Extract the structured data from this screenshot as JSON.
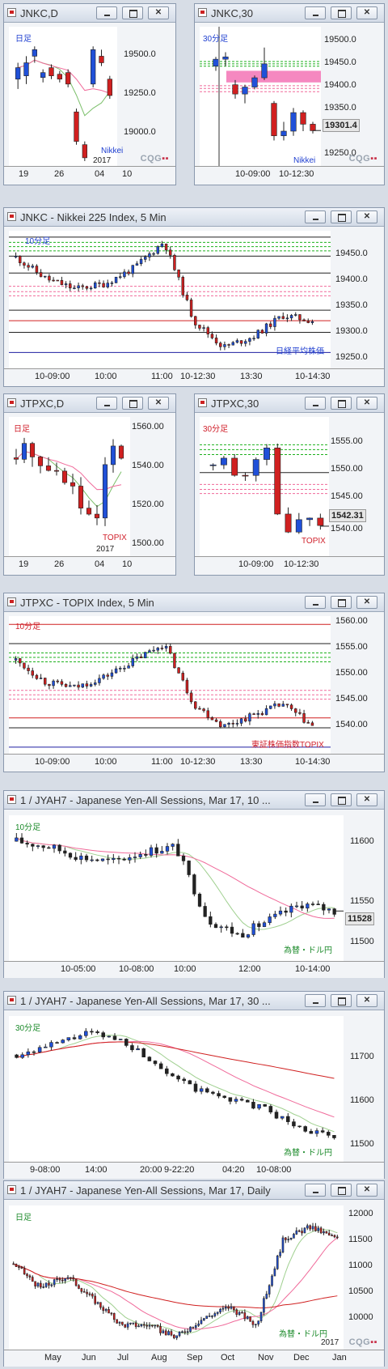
{
  "windows": [
    {
      "id": "w1",
      "title": "JNKC,D",
      "period": "日足",
      "name": "Nikkei",
      "year": "2017",
      "yticks": [
        "19500.0",
        "19250.0",
        "19000.0"
      ],
      "xticks": [
        "19",
        "26",
        "04",
        "10"
      ],
      "colors": {
        "period": "#1f3fd0",
        "name": "#1f3fd0"
      }
    },
    {
      "id": "w2",
      "title": "JNKC,30",
      "period": "30分足",
      "name": "Nikkei",
      "price": "19301.4",
      "yticks": [
        "19500.0",
        "19450.0",
        "19400.0",
        "19350.0",
        "19300.0",
        "19250.0"
      ],
      "xticks": [
        "10-09:00",
        "10-12:30"
      ],
      "colors": {
        "period": "#1f3fd0",
        "name": "#1f3fd0"
      }
    },
    {
      "id": "w3",
      "title": "JNKC - Nikkei 225 Index, 5 Min",
      "period": "10分足",
      "name": "日経平均株価",
      "yticks": [
        "19450.0",
        "19400.0",
        "19350.0",
        "19300.0",
        "19250.0"
      ],
      "xticks": [
        "10-09:00",
        "10:00",
        "11:00",
        "10-12:30",
        "13:30",
        "10-14:30"
      ],
      "colors": {
        "period": "#1f3fd0",
        "name": "#1f3fd0"
      }
    },
    {
      "id": "w4",
      "title": "JTPXC,D",
      "period": "日足",
      "name": "TOPIX",
      "year": "2017",
      "yticks": [
        "1560.00",
        "1540.00",
        "1520.00",
        "1500.00"
      ],
      "xticks": [
        "19",
        "26",
        "04",
        "10"
      ],
      "colors": {
        "period": "#d01f2a",
        "name": "#d01f2a"
      }
    },
    {
      "id": "w5",
      "title": "JTPXC,30",
      "period": "30分足",
      "name": "TOPIX",
      "price": "1542.31",
      "yticks": [
        "1555.00",
        "1550.00",
        "1545.00",
        "1540.00"
      ],
      "xticks": [
        "10-09:00",
        "10-12:30"
      ],
      "colors": {
        "period": "#d01f2a",
        "name": "#d01f2a"
      }
    },
    {
      "id": "w6",
      "title": "JTPXC - TOPIX Index, 5 Min",
      "period": "10分足",
      "name": "東証株価指数TOPIX",
      "yticks": [
        "1560.00",
        "1555.00",
        "1550.00",
        "1545.00",
        "1540.00"
      ],
      "xticks": [
        "10-09:00",
        "10:00",
        "11:00",
        "10-12:30",
        "13:30",
        "10-14:30"
      ],
      "colors": {
        "period": "#d01f2a",
        "name": "#d01f2a"
      }
    },
    {
      "id": "w7",
      "title": "1 / JYAH7 - Japanese Yen-All Sessions, Mar 17, 10 ...",
      "period": "10分足",
      "name": "為替・ドル円",
      "price": "11528",
      "yticks": [
        "11600",
        "11550",
        "11500"
      ],
      "xticks": [
        "10-05:00",
        "10-08:00",
        "10:00",
        "12:00",
        "10-14:00"
      ],
      "colors": {
        "period": "#1b8a2a",
        "name": "#1b8a2a"
      }
    },
    {
      "id": "w8",
      "title": "1 / JYAH7 - Japanese Yen-All Sessions, Mar 17, 30 ...",
      "period": "30分足",
      "name": "為替・ドル円",
      "yticks": [
        "11700",
        "11600",
        "11500"
      ],
      "xticks": [
        "9-08:00",
        "14:00",
        "20:00",
        "9-22:20",
        "04:20",
        "10-08:00"
      ],
      "colors": {
        "period": "#1b8a2a",
        "name": "#1b8a2a"
      }
    },
    {
      "id": "w9",
      "title": "1 / JYAH7 - Japanese Yen-All Sessions, Mar 17, Daily",
      "period": "日足",
      "name": "為替・ドル円",
      "year": "2017",
      "yticks": [
        "12000",
        "11500",
        "11000",
        "10500",
        "10000"
      ],
      "xticks": [
        "May",
        "Jun",
        "Jul",
        "Aug",
        "Sep",
        "Oct",
        "Nov",
        "Dec",
        "Jan"
      ],
      "colors": {
        "period": "#1b8a2a",
        "name": "#1b8a2a"
      }
    }
  ],
  "chart_data": [
    {
      "type": "candlestick",
      "window": "JNKC,D",
      "ylim": [
        18850,
        19700
      ],
      "candles": [
        [
          19380,
          19450,
          19320,
          19480
        ],
        [
          19400,
          19480,
          19350,
          19520
        ],
        [
          19520,
          19560,
          19480,
          19580
        ],
        [
          19390,
          19420,
          19360,
          19440
        ],
        [
          19450,
          19400,
          19380,
          19470
        ],
        [
          19410,
          19380,
          19360,
          19430
        ],
        [
          19420,
          19350,
          19330,
          19440
        ],
        [
          19180,
          19000,
          18980,
          19200
        ],
        [
          18980,
          18900,
          18880,
          19000
        ],
        [
          19350,
          19560,
          19330,
          19580
        ],
        [
          19520,
          19480,
          19460,
          19560
        ],
        [
          19380,
          19280,
          19260,
          19400
        ]
      ]
    },
    {
      "type": "candlestick",
      "window": "JNKC,30",
      "ylim": [
        19225,
        19525
      ],
      "candles": [
        [
          19440,
          19455,
          19430,
          19460
        ],
        [
          19455,
          19460,
          19440,
          19470
        ],
        [
          19400,
          19380,
          19370,
          19410
        ],
        [
          19380,
          19395,
          19360,
          19400
        ],
        [
          19395,
          19415,
          19390,
          19420
        ],
        [
          19415,
          19445,
          19410,
          19480
        ],
        [
          19360,
          19290,
          19280,
          19365
        ],
        [
          19290,
          19300,
          19280,
          19320
        ],
        [
          19300,
          19340,
          19290,
          19350
        ],
        [
          19340,
          19315,
          19300,
          19345
        ],
        [
          19315,
          19301,
          19295,
          19320
        ]
      ]
    },
    {
      "type": "candlestick",
      "window": "JNKC 5 Min",
      "ylim": [
        19230,
        19490
      ]
    },
    {
      "type": "candlestick",
      "window": "JTPXC,D",
      "ylim": [
        1495,
        1570
      ]
    },
    {
      "type": "candlestick",
      "window": "JTPXC,30",
      "ylim": [
        1538,
        1558
      ]
    },
    {
      "type": "candlestick",
      "window": "JTPXC 5 Min",
      "ylim": [
        1537,
        1562
      ]
    },
    {
      "type": "candlestick",
      "window": "JYAH7 10 Min",
      "ylim": [
        11480,
        11620
      ]
    },
    {
      "type": "candlestick",
      "window": "JYAH7 30 Min",
      "ylim": [
        11450,
        11750
      ]
    },
    {
      "type": "candlestick",
      "window": "JYAH7 Daily",
      "ylim": [
        9800,
        12150
      ]
    }
  ]
}
